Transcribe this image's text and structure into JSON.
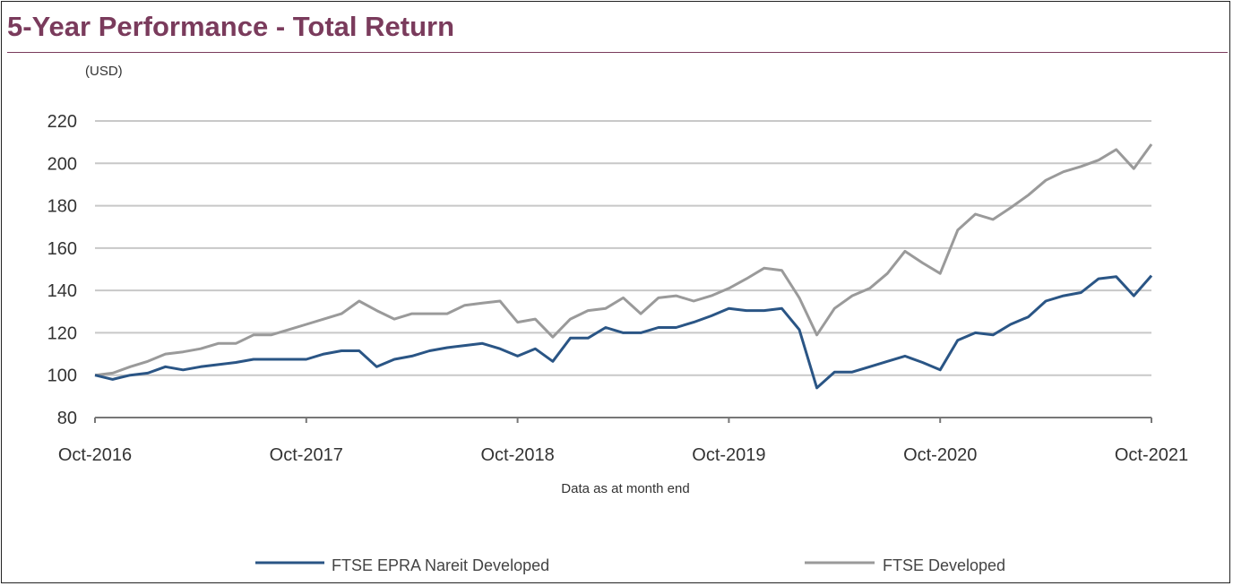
{
  "title": "5-Year Performance - Total Return",
  "colors": {
    "title": "#7a3b5c",
    "series1": "#2a5585",
    "series2": "#9a9a9a"
  },
  "chart_data": {
    "type": "line",
    "title": "5-Year Performance - Total Return",
    "ylabel": "(USD)",
    "xlabel": "Data as at month end",
    "ylim": [
      80,
      220
    ],
    "yticks": [
      80,
      100,
      120,
      140,
      160,
      180,
      200,
      220
    ],
    "xtick_labels": [
      "Oct-2016",
      "Oct-2017",
      "Oct-2018",
      "Oct-2019",
      "Oct-2020",
      "Oct-2021"
    ],
    "x_start": "Oct-2016",
    "x_end": "Oct-2021",
    "frequency": "monthly",
    "grid": "horizontal",
    "legend_position": "bottom",
    "series": [
      {
        "name": "FTSE EPRA Nareit Developed",
        "color": "#2a5585",
        "values": [
          100,
          98,
          100,
          101,
          104,
          102.5,
          104,
          105,
          106,
          107.5,
          107.5,
          107.5,
          107.5,
          110,
          111.5,
          111.5,
          104,
          107.5,
          109,
          111.5,
          113,
          114,
          115,
          112.5,
          109,
          112.5,
          106.5,
          117.5,
          117.5,
          122.5,
          120,
          120,
          122.5,
          122.5,
          125,
          128,
          131.5,
          130.5,
          130.5,
          131.5,
          121.5,
          94,
          101.5,
          101.5,
          104,
          106.5,
          109,
          106,
          102.5,
          116.5,
          120,
          119,
          124,
          127.5,
          135,
          137.5,
          139,
          145.5,
          146.5,
          137.5,
          147
        ]
      },
      {
        "name": "FTSE Developed",
        "color": "#9a9a9a",
        "values": [
          100,
          101,
          104,
          106.5,
          110,
          111,
          112.5,
          115,
          115,
          119,
          119,
          121.5,
          124,
          126.5,
          129,
          135,
          130.5,
          126.5,
          129,
          129,
          129,
          133,
          134,
          135,
          125,
          126.5,
          118,
          126.5,
          130.5,
          131.5,
          136.5,
          129,
          136.5,
          137.5,
          135,
          137.5,
          141,
          145.5,
          150.5,
          149.5,
          136.5,
          119,
          131.5,
          137.5,
          141,
          148,
          158.5,
          153,
          148,
          168.5,
          176,
          173.5,
          179,
          185,
          192,
          196,
          198.5,
          201.5,
          206.5,
          197.5,
          209
        ]
      }
    ]
  }
}
